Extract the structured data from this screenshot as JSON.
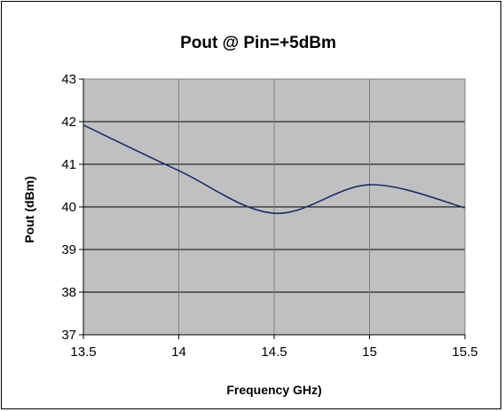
{
  "chart_data": {
    "type": "line",
    "title": "Pout @ Pin=+5dBm",
    "xlabel": "Frequency GHz)",
    "ylabel": "Pout  (dBm)",
    "xlim": [
      13.5,
      15.5
    ],
    "ylim": [
      37,
      43
    ],
    "xticks": [
      "13.5",
      "14",
      "14.5",
      "15",
      "15.5"
    ],
    "yticks": [
      "37",
      "38",
      "39",
      "40",
      "41",
      "42",
      "43"
    ],
    "grid": true,
    "colors": {
      "plot_bg": "#c0c0c0",
      "line": "#1c2a6b",
      "grid": "#808080"
    },
    "series": [
      {
        "x": [
          13.5,
          14.0,
          14.5,
          15.0,
          15.5
        ],
        "y": [
          41.92,
          40.85,
          39.85,
          40.52,
          39.98
        ]
      }
    ]
  }
}
